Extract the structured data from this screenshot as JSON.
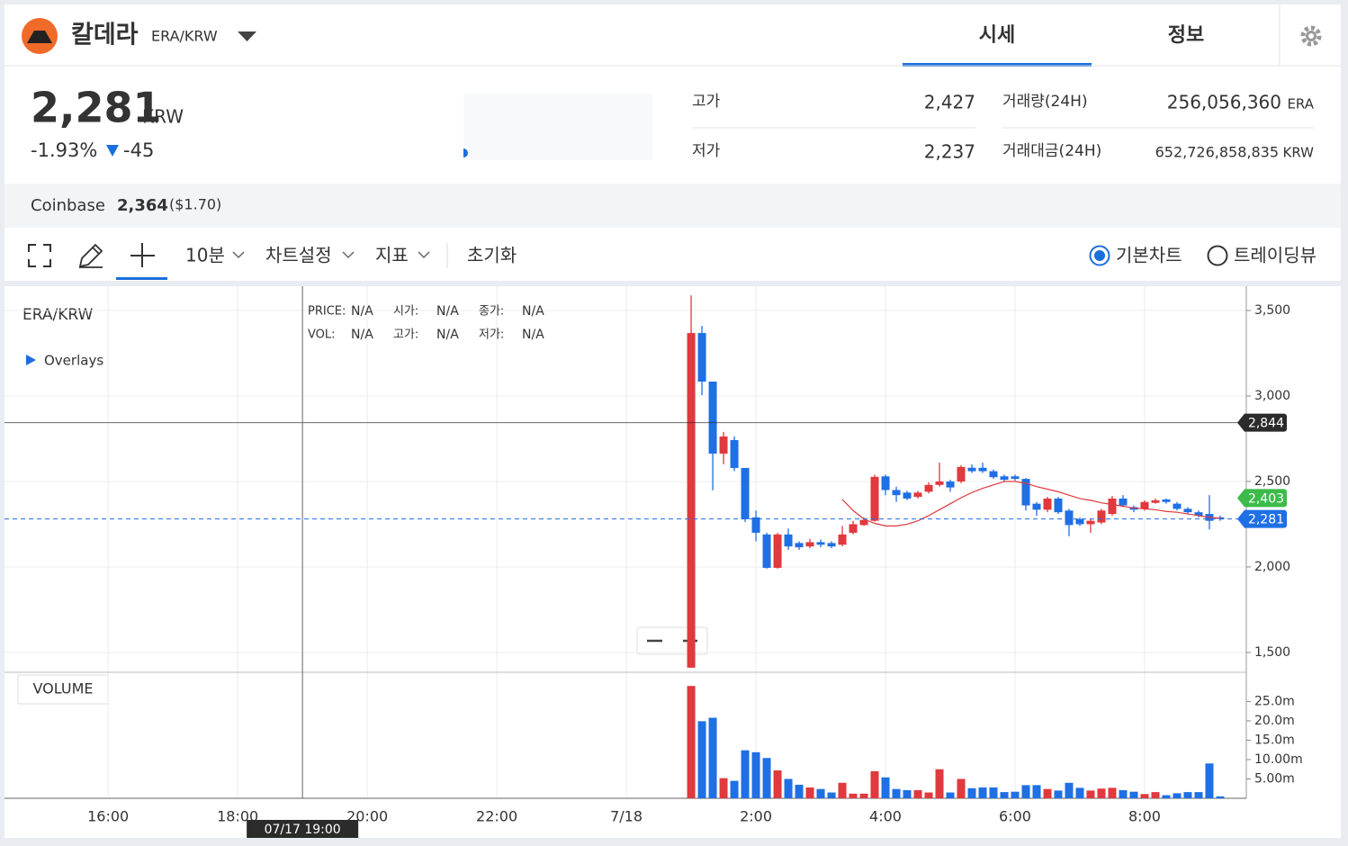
{
  "header": {
    "name": "칼데라",
    "pair": "ERA/KRW",
    "tabs": [
      "시세",
      "정보"
    ]
  },
  "price": {
    "value": "2,281",
    "unit": "KRW",
    "change_rate": "-1.93%",
    "change": "-45"
  },
  "stats": [
    {
      "label": "고가",
      "value": "2,427"
    },
    {
      "label": "저가",
      "value": "2,237"
    },
    {
      "label": "거래량(24H)",
      "value": "256,056,360",
      "unit": "ERA"
    },
    {
      "label": "거래대금(24H)",
      "value": "652,726,858,835",
      "unit": "KRW"
    }
  ],
  "exchange": {
    "name": "Coinbase",
    "price": "2,364",
    "usd": "($1.70)"
  },
  "toolbar": {
    "interval": "10분",
    "settings": "차트설정",
    "indicators": "지표",
    "reset": "초기화",
    "chart_types": [
      "기본차트",
      "트레이딩뷰"
    ]
  },
  "chart_data": {
    "type": "candlestick",
    "symbol": "ERA/KRW",
    "overlays": "Overlays",
    "volume_title": "VOLUME",
    "info": [
      [
        "PRICE:",
        "N/A"
      ],
      [
        "시가:",
        "N/A"
      ],
      [
        "종가:",
        "N/A"
      ],
      [
        "VOL:",
        "N/A"
      ],
      [
        "고가:",
        "N/A"
      ],
      [
        "저가:",
        "N/A"
      ]
    ],
    "up_color": "#e0393e",
    "down_color": "#1f6fe5",
    "ma_color": "#e0393e",
    "x": [
      1,
      1.1667,
      1.3333,
      1.5,
      1.6667,
      1.8333,
      2,
      2.1667,
      2.3333,
      2.5,
      2.6667,
      2.8333,
      3,
      3.1667,
      3.3333,
      3.5,
      3.6667,
      3.8333,
      4,
      4.1667,
      4.3333,
      4.5,
      4.6667,
      4.8333,
      5,
      5.1667,
      5.3333,
      5.5,
      5.6667,
      5.8333,
      6,
      6.1667,
      6.3333,
      6.5,
      6.6667,
      6.8333,
      7,
      7.1667,
      7.3333,
      7.5,
      7.6667,
      7.8333,
      8,
      8.1667,
      8.3333,
      8.5,
      8.6667,
      8.8333,
      9,
      9.1667
    ],
    "open": [
      1411,
      3368,
      3084,
      2663,
      2742,
      2579,
      2290,
      2190,
      1995,
      2190,
      2140,
      2120,
      2145,
      2140,
      2130,
      2200,
      2245,
      2270,
      2530,
      2450,
      2435,
      2410,
      2440,
      2480,
      2500,
      2500,
      2580,
      2580,
      2560,
      2530,
      2530,
      2515,
      2370,
      2335,
      2400,
      2330,
      2280,
      2250,
      2260,
      2310,
      2400,
      2350,
      2340,
      2375,
      2395,
      2370,
      2340,
      2320,
      2310,
      2290
    ],
    "high": [
      3589,
      3410,
      3084,
      2790,
      2763,
      2579,
      2330,
      2200,
      2200,
      2225,
      2150,
      2165,
      2160,
      2150,
      2240,
      2270,
      2290,
      2540,
      2540,
      2470,
      2445,
      2445,
      2495,
      2610,
      2510,
      2595,
      2600,
      2610,
      2570,
      2540,
      2540,
      2520,
      2380,
      2410,
      2410,
      2340,
      2290,
      2285,
      2340,
      2415,
      2420,
      2360,
      2390,
      2400,
      2400,
      2380,
      2350,
      2330,
      2420,
      2300
    ],
    "low": [
      1411,
      3005,
      2448,
      2600,
      2560,
      2263,
      2150,
      1990,
      1990,
      2100,
      2100,
      2110,
      2115,
      2110,
      2120,
      2190,
      2240,
      2265,
      2420,
      2380,
      2390,
      2400,
      2430,
      2470,
      2440,
      2490,
      2550,
      2550,
      2515,
      2500,
      2505,
      2330,
      2300,
      2320,
      2310,
      2180,
      2240,
      2200,
      2250,
      2300,
      2350,
      2320,
      2330,
      2370,
      2370,
      2330,
      2310,
      2290,
      2220,
      2270
    ],
    "close": [
      3368,
      3084,
      2663,
      2763,
      2579,
      2279,
      2200,
      1995,
      2190,
      2120,
      2115,
      2145,
      2130,
      2120,
      2190,
      2250,
      2275,
      2527,
      2450,
      2420,
      2400,
      2435,
      2480,
      2500,
      2465,
      2585,
      2560,
      2560,
      2525,
      2510,
      2515,
      2360,
      2335,
      2400,
      2320,
      2245,
      2250,
      2270,
      2330,
      2400,
      2360,
      2335,
      2380,
      2390,
      2380,
      2340,
      2320,
      2300,
      2270,
      2281
    ],
    "ma": [
      null,
      null,
      null,
      null,
      null,
      null,
      null,
      null,
      null,
      null,
      null,
      null,
      null,
      null,
      2395,
      2330,
      2280,
      2255,
      2240,
      2240,
      2250,
      2270,
      2300,
      2335,
      2370,
      2405,
      2435,
      2460,
      2480,
      2500,
      2500,
      2490,
      2470,
      2455,
      2440,
      2420,
      2400,
      2390,
      2375,
      2365,
      2355,
      2345,
      2340,
      2335,
      2325,
      2320,
      2310,
      2300,
      2290,
      2285
    ],
    "volume": [
      29.0,
      19.9,
      20.8,
      5.2,
      4.5,
      12.4,
      11.9,
      10.4,
      7.2,
      5.0,
      3.5,
      2.8,
      2.4,
      1.5,
      4.0,
      1.2,
      1.2,
      7.0,
      5.4,
      2.4,
      2.1,
      2.1,
      1.5,
      7.5,
      1.5,
      5.0,
      2.6,
      2.8,
      2.8,
      1.6,
      1.7,
      3.4,
      3.4,
      2.4,
      2.0,
      4.0,
      2.7,
      2.0,
      2.5,
      2.7,
      2.1,
      1.7,
      1.1,
      1.6,
      0.8,
      1.3,
      1.6,
      1.6,
      9.0,
      0.5
    ],
    "xlim": [
      -9.6,
      9.57
    ],
    "xticks": [
      {
        "value": -8,
        "label": "16:00"
      },
      {
        "value": -6,
        "label": "18:00"
      },
      {
        "value": -4,
        "label": "20:00"
      },
      {
        "value": -2,
        "label": "22:00"
      },
      {
        "value": 0,
        "label": "7/18"
      },
      {
        "value": 2,
        "label": "2:00"
      },
      {
        "value": 4,
        "label": "4:00"
      },
      {
        "value": 6,
        "label": "6:00"
      },
      {
        "value": 8,
        "label": "8:00"
      }
    ],
    "ylim": [
      1384,
      3642
    ],
    "yticks": [
      {
        "value": 1500,
        "label": "1,500"
      },
      {
        "value": 2000,
        "label": "2,000"
      },
      {
        "value": 2500,
        "label": "2,500"
      },
      {
        "value": 3000,
        "label": "3,000"
      },
      {
        "value": 3500,
        "label": "3,500"
      }
    ],
    "volume_ylim": [
      0,
      32.3
    ],
    "volume_yticks": [
      {
        "value": 5,
        "label": "5.00m"
      },
      {
        "value": 10,
        "label": "10.00m"
      },
      {
        "value": 15,
        "label": "15.0m"
      },
      {
        "value": 20,
        "label": "20.0m"
      },
      {
        "value": 25,
        "label": "25.0m"
      }
    ],
    "price_labels": [
      {
        "value": 2844,
        "label": "2,844",
        "color": "#2b2b2b",
        "line": "solid"
      },
      {
        "value": 2403,
        "label": "2,403",
        "color": "#3dbb4a"
      },
      {
        "value": 2281,
        "label": "2,281",
        "color": "#1f6fe5",
        "line": "dashed"
      }
    ],
    "crosshair": {
      "x": -5,
      "label": "07/17 19:00"
    }
  }
}
